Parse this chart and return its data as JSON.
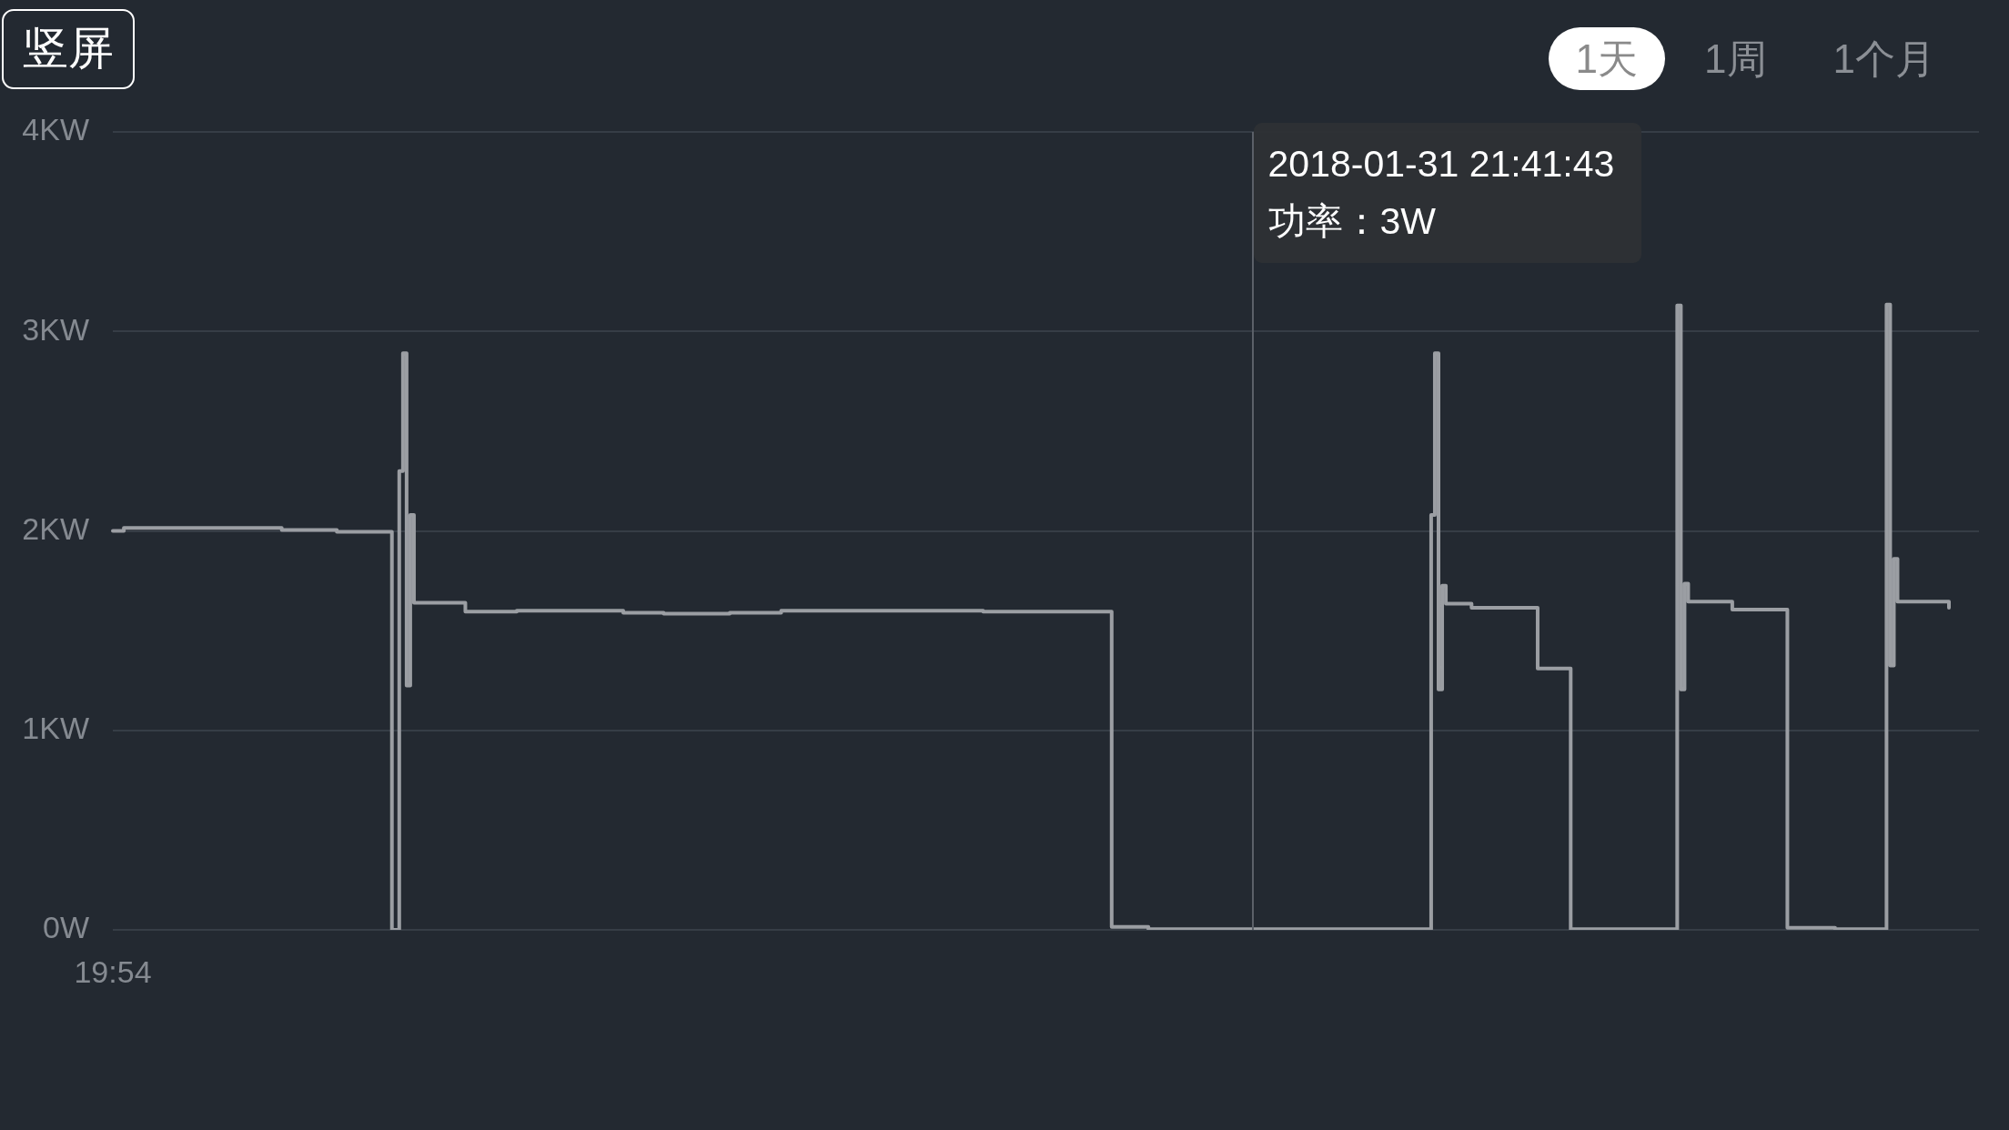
{
  "chart_data": {
    "type": "step",
    "categories": [
      "19:54",
      null,
      null,
      null,
      null,
      null,
      null,
      null,
      null,
      null,
      null,
      null,
      null,
      null,
      null,
      null,
      null,
      null,
      null,
      null,
      null,
      null,
      null,
      null,
      null,
      null,
      null,
      null,
      null,
      null,
      null,
      null,
      null,
      null,
      null,
      null,
      null,
      null,
      null,
      null,
      null,
      null,
      null,
      null,
      null,
      null,
      null,
      null,
      null,
      null,
      null,
      null,
      null,
      null,
      null,
      null,
      null,
      null,
      null,
      null,
      null,
      null,
      null,
      null,
      null,
      null,
      null,
      null,
      null,
      null,
      null,
      null,
      null,
      null,
      null,
      null,
      null,
      null,
      null,
      null,
      null,
      null,
      null,
      null,
      null,
      null,
      null,
      null,
      null,
      null,
      null,
      null,
      null,
      null,
      null,
      null,
      null,
      null,
      null,
      null,
      null,
      null,
      null,
      null,
      null,
      null,
      null,
      null,
      null,
      null,
      null,
      null,
      null,
      null,
      null,
      null,
      null,
      null,
      null,
      null,
      null,
      null,
      null,
      null,
      null,
      null,
      null,
      null,
      null,
      null,
      null,
      null,
      null,
      null,
      null,
      null,
      null,
      null,
      null,
      null,
      null,
      null,
      null,
      null,
      null,
      null,
      null,
      null,
      null,
      null,
      null,
      null,
      null,
      null,
      null,
      null,
      null,
      null,
      null,
      null,
      null,
      null,
      null,
      null,
      null,
      null,
      null,
      null,
      null,
      null,
      null,
      null,
      null,
      null,
      null,
      null,
      null,
      null,
      null,
      null,
      null,
      null,
      null,
      null,
      null,
      null,
      null,
      null,
      null,
      null,
      null,
      null,
      null,
      null,
      null,
      null,
      null,
      null,
      null,
      null,
      null,
      null,
      null,
      null,
      null,
      null,
      null,
      null,
      null,
      null,
      null,
      null,
      null,
      null,
      null,
      null,
      null,
      null,
      null,
      null,
      null,
      null,
      null,
      null,
      null,
      null,
      null,
      null,
      null,
      null,
      null,
      null,
      null,
      null,
      null,
      null,
      null,
      null,
      null,
      null,
      null,
      null,
      null,
      null,
      null,
      null,
      null,
      null,
      null,
      null,
      null,
      null,
      null,
      null,
      null,
      null,
      null,
      null,
      null,
      null,
      null,
      null,
      null,
      null,
      null,
      null,
      null,
      null,
      null,
      null,
      null,
      null,
      null,
      null,
      null,
      null,
      null,
      null,
      null,
      null,
      null,
      null,
      null,
      null,
      null,
      null,
      null,
      null,
      null,
      null,
      null,
      null,
      null,
      null,
      null,
      null,
      null,
      null,
      null,
      null,
      null,
      null,
      null,
      null,
      null,
      null,
      null,
      null,
      null,
      null,
      null,
      null,
      null,
      null,
      null,
      null,
      null,
      null,
      null,
      null,
      null,
      null,
      null,
      null,
      null,
      null,
      null,
      null,
      null,
      null,
      null,
      null,
      null,
      null,
      null,
      null,
      null,
      null,
      null,
      null,
      null,
      null,
      null,
      null,
      null,
      null,
      null,
      null,
      null,
      null,
      null,
      null,
      null,
      null,
      null,
      null,
      null,
      null,
      null,
      null,
      null,
      null,
      null,
      null,
      null,
      null,
      null,
      null,
      null,
      null,
      null,
      null,
      null,
      null,
      null,
      null,
      null,
      null,
      null,
      null,
      null,
      null,
      null,
      null,
      null,
      null,
      null,
      null,
      null,
      null,
      null,
      null,
      null,
      null,
      null,
      null,
      null,
      null,
      null,
      null,
      null,
      null,
      null,
      null,
      null,
      null,
      null,
      null,
      null,
      null,
      null,
      null,
      null,
      null,
      null,
      null,
      null,
      null,
      null,
      null,
      null,
      null,
      null,
      null,
      null,
      null,
      null,
      null,
      null,
      null,
      null,
      null,
      null,
      null,
      null,
      null,
      null,
      null,
      null,
      null,
      null,
      null,
      null,
      null,
      null,
      null,
      null,
      null,
      null,
      null,
      null,
      null,
      null,
      null,
      null,
      null,
      null,
      null,
      null,
      null,
      null,
      null,
      null,
      null,
      null,
      null,
      null,
      null,
      null,
      null,
      null,
      null,
      null,
      null,
      null,
      null,
      null,
      null,
      null,
      null,
      null,
      null,
      null,
      null,
      null,
      null,
      null,
      null,
      null,
      null,
      null,
      null,
      null,
      null,
      null,
      null,
      null,
      null,
      null,
      null,
      null
    ],
    "values": [
      2.0,
      2.0,
      2.0,
      2.015,
      2.015,
      2.015,
      2.015,
      2.015,
      2.015,
      2.015,
      2.015,
      2.015,
      2.015,
      2.015,
      2.015,
      2.015,
      2.015,
      2.015,
      2.015,
      2.015,
      2.015,
      2.015,
      2.015,
      2.015,
      2.015,
      2.015,
      2.015,
      2.015,
      2.015,
      2.015,
      2.015,
      2.015,
      2.015,
      2.015,
      2.015,
      2.015,
      2.015,
      2.015,
      2.015,
      2.015,
      2.015,
      2.015,
      2.015,
      2.015,
      2.015,
      2.015,
      2.005,
      2.005,
      2.005,
      2.005,
      2.005,
      2.005,
      2.005,
      2.005,
      2.005,
      2.005,
      2.005,
      2.005,
      2.005,
      2.005,
      2.005,
      1.995,
      1.995,
      1.995,
      1.995,
      1.995,
      1.995,
      1.995,
      1.995,
      1.995,
      1.995,
      1.995,
      1.995,
      1.995,
      1.995,
      1.995,
      0,
      0,
      2.3,
      2.89,
      1.225,
      2.08,
      1.64,
      1.64,
      1.64,
      1.64,
      1.64,
      1.64,
      1.64,
      1.64,
      1.64,
      1.64,
      1.64,
      1.64,
      1.64,
      1.64,
      1.595,
      1.595,
      1.595,
      1.595,
      1.595,
      1.595,
      1.595,
      1.595,
      1.595,
      1.595,
      1.595,
      1.595,
      1.595,
      1.595,
      1.6,
      1.6,
      1.6,
      1.6,
      1.6,
      1.6,
      1.6,
      1.6,
      1.6,
      1.6,
      1.6,
      1.6,
      1.6,
      1.6,
      1.6,
      1.6,
      1.6,
      1.6,
      1.6,
      1.6,
      1.6,
      1.6,
      1.6,
      1.6,
      1.6,
      1.6,
      1.6,
      1.6,
      1.6,
      1.59,
      1.59,
      1.59,
      1.59,
      1.59,
      1.59,
      1.59,
      1.59,
      1.59,
      1.59,
      1.59,
      1.585,
      1.585,
      1.585,
      1.585,
      1.585,
      1.585,
      1.585,
      1.585,
      1.585,
      1.585,
      1.585,
      1.585,
      1.585,
      1.585,
      1.585,
      1.585,
      1.585,
      1.585,
      1.59,
      1.59,
      1.59,
      1.59,
      1.59,
      1.59,
      1.59,
      1.59,
      1.59,
      1.59,
      1.59,
      1.59,
      1.59,
      1.59,
      1.6,
      1.6,
      1.6,
      1.6,
      1.6,
      1.6,
      1.6,
      1.6,
      1.6,
      1.6,
      1.6,
      1.6,
      1.6,
      1.6,
      1.6,
      1.6,
      1.6,
      1.6,
      1.6,
      1.6,
      1.6,
      1.6,
      1.6,
      1.6,
      1.6,
      1.6,
      1.6,
      1.6,
      1.6,
      1.6,
      1.6,
      1.6,
      1.6,
      1.6,
      1.6,
      1.6,
      1.6,
      1.6,
      1.6,
      1.6,
      1.6,
      1.6,
      1.6,
      1.6,
      1.6,
      1.6,
      1.6,
      1.6,
      1.6,
      1.6,
      1.6,
      1.6,
      1.6,
      1.6,
      1.6,
      1.595,
      1.595,
      1.595,
      1.595,
      1.595,
      1.595,
      1.595,
      1.595,
      1.595,
      1.595,
      1.595,
      1.595,
      1.595,
      1.595,
      1.595,
      1.595,
      1.595,
      1.595,
      1.595,
      1.595,
      1.595,
      1.595,
      1.595,
      1.595,
      1.595,
      1.595,
      1.595,
      1.595,
      1.595,
      1.595,
      1.595,
      1.595,
      1.595,
      1.595,
      1.595,
      0.015,
      0.015,
      0.015,
      0.015,
      0.015,
      0.015,
      0.015,
      0.015,
      0.015,
      0.015,
      0.003,
      0.003,
      0.003,
      0.003,
      0.003,
      0.003,
      0.003,
      0.003,
      0.003,
      0.003,
      0.003,
      0.003,
      0.003,
      0.003,
      0.003,
      0.003,
      0.003,
      0.003,
      0.003,
      0.003,
      0.003,
      0.003,
      0.003,
      0.003,
      0.003,
      0.003,
      0.003,
      0.003,
      0.003,
      0.003,
      0.003,
      0.003,
      0.003,
      0.003,
      0.003,
      0.003,
      0.003,
      0.003,
      0.003,
      0.003,
      0.003,
      0.003,
      0.003,
      0.003,
      0.003,
      0.003,
      0.003,
      0.003,
      0.003,
      0.003,
      0.003,
      0.003,
      0.003,
      0.003,
      0.003,
      0.003,
      0.003,
      0.003,
      0.003,
      0.003,
      0.003,
      0.003,
      0.003,
      0.003,
      0.003,
      0.003,
      0.003,
      0.003,
      0.003,
      0.003,
      0.003,
      0.003,
      0.003,
      0.003,
      0.003,
      0.003,
      0.003,
      2.08,
      2.89,
      1.205,
      1.725,
      1.635,
      1.635,
      1.635,
      1.635,
      1.635,
      1.635,
      1.635,
      1.615,
      1.615,
      1.615,
      1.615,
      1.615,
      1.615,
      1.615,
      1.615,
      1.615,
      1.615,
      1.615,
      1.615,
      1.615,
      1.615,
      1.615,
      1.615,
      1.615,
      1.615,
      1.31,
      1.31,
      1.31,
      1.31,
      1.31,
      1.31,
      1.31,
      1.31,
      1.31,
      0.003,
      0.003,
      0.003,
      0.003,
      0.003,
      0.003,
      0.003,
      0.003,
      0.003,
      0.003,
      0.003,
      0.003,
      0.003,
      0.003,
      0.003,
      0.003,
      0.003,
      0.003,
      0.003,
      0.003,
      0.003,
      0.003,
      0.003,
      0.003,
      0.003,
      0.003,
      0.003,
      0.003,
      0.003,
      3.13,
      1.205,
      1.735,
      1.645,
      1.645,
      1.645,
      1.645,
      1.645,
      1.645,
      1.645,
      1.645,
      1.645,
      1.645,
      1.645,
      1.645,
      1.605,
      1.605,
      1.605,
      1.605,
      1.605,
      1.605,
      1.605,
      1.605,
      1.605,
      1.605,
      1.605,
      1.605,
      1.605,
      1.605,
      1.605,
      0.01,
      0.01,
      0.01,
      0.01,
      0.01,
      0.01,
      0.01,
      0.01,
      0.01,
      0.01,
      0.01,
      0.01,
      0.01,
      0.003,
      0.003,
      0.003,
      0.003,
      0.003,
      0.003,
      0.003,
      0.003,
      0.003,
      0.003,
      0.003,
      0.003,
      0.003,
      0.003,
      3.135,
      1.325,
      1.86,
      1.645,
      1.645,
      1.645,
      1.645,
      1.645,
      1.645,
      1.645,
      1.645,
      1.645,
      1.645,
      1.645,
      1.645,
      1.645,
      1.645,
      1.615
    ],
    "color": "#9b9ea3",
    "ylim": [
      0,
      4
    ],
    "yticks": [
      {
        "value": 0,
        "label": "0W"
      },
      {
        "value": 1,
        "label": "1KW"
      },
      {
        "value": 2,
        "label": "2KW"
      },
      {
        "value": 3,
        "label": "3KW"
      },
      {
        "value": 4,
        "label": "4KW"
      }
    ],
    "grid": "y",
    "annotations": [
      "竖屏",
      "1天",
      "1周",
      "1个月",
      "2018-01-31 21:41:43\n功率：3W"
    ]
  }
}
